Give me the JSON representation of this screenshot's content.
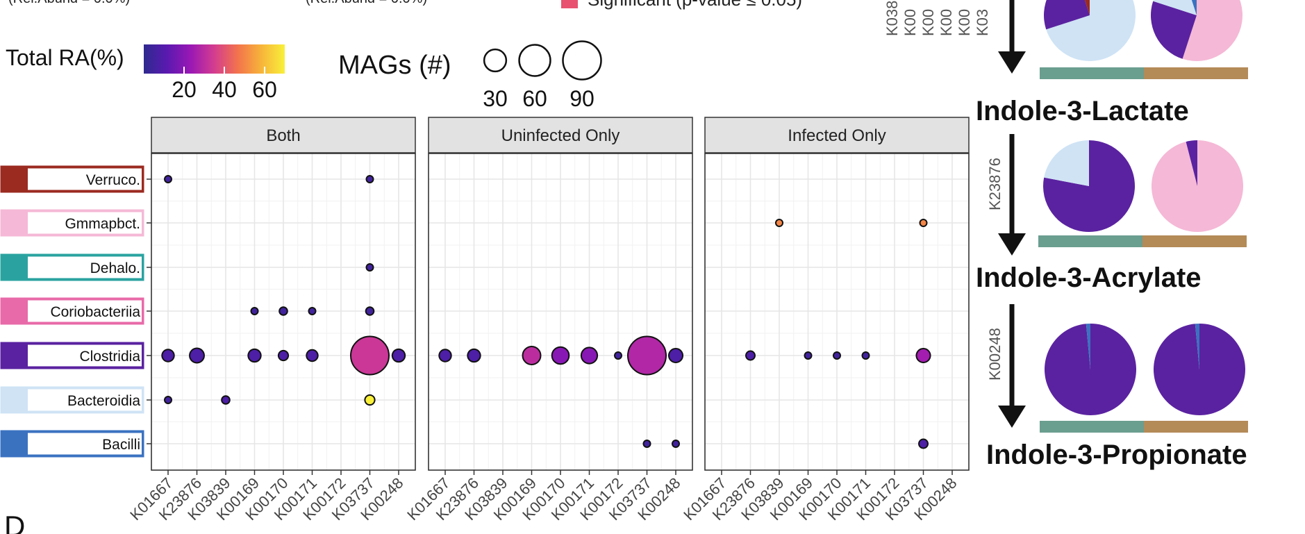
{
  "legend": {
    "partial_label_left": "(Rel.Abund = 0.0%)",
    "partial_label_right": "(Rel.Abund = 0.0%)",
    "significant_label": "Significant (p-value ≤ 0.05)",
    "significant_color": "#e8516f",
    "total_ra_title": "Total RA(%)",
    "total_ra_ticks": [
      "20",
      "40",
      "60"
    ],
    "mags_title": "MAGs (#)",
    "mags_values": [
      "30",
      "60",
      "90"
    ]
  },
  "panel_letter": "D",
  "chart_data": {
    "type": "scatter",
    "subtype": "faceted bubble plot",
    "facets": [
      "Both",
      "Uninfected Only",
      "Infected Only"
    ],
    "x_categories": [
      "K01667",
      "K23876",
      "K03839",
      "K00169",
      "K00170",
      "K00171",
      "K00172",
      "K03737",
      "K00248"
    ],
    "y_categories": [
      "Verruco.",
      "Gmmapbct.",
      "Dehalo.",
      "Coriobacteriia",
      "Clostridia",
      "Bacteroidia",
      "Bacilli"
    ],
    "y_colors": [
      "#9b2a20",
      "#f5b8d6",
      "#2aa3a0",
      "#e86aa8",
      "#5a22a0",
      "#cfe3f5",
      "#3a72c0"
    ],
    "color_scale": {
      "label": "Total RA(%)",
      "min": 0,
      "max": 70,
      "colors": [
        "#2e2a8f",
        "#5b19b0",
        "#9a18b5",
        "#d43d8f",
        "#f3734c",
        "#f7b43a",
        "#f8f03a"
      ]
    },
    "size_scale": {
      "label": "MAGs (#)",
      "reference": [
        30,
        60,
        90
      ]
    },
    "points": [
      {
        "facet": "Both",
        "x": "K01667",
        "y": "Verruco.",
        "mags": 1,
        "ra": 5
      },
      {
        "facet": "Both",
        "x": "K03737",
        "y": "Verruco.",
        "mags": 1,
        "ra": 5
      },
      {
        "facet": "Both",
        "x": "K03737",
        "y": "Dehalo.",
        "mags": 1,
        "ra": 5
      },
      {
        "facet": "Both",
        "x": "K00169",
        "y": "Coriobacteriia",
        "mags": 1,
        "ra": 5
      },
      {
        "facet": "Both",
        "x": "K00170",
        "y": "Coriobacteriia",
        "mags": 4,
        "ra": 5
      },
      {
        "facet": "Both",
        "x": "K00171",
        "y": "Coriobacteriia",
        "mags": 1,
        "ra": 5
      },
      {
        "facet": "Both",
        "x": "K03737",
        "y": "Coriobacteriia",
        "mags": 4,
        "ra": 5
      },
      {
        "facet": "Both",
        "x": "K01667",
        "y": "Clostridia",
        "mags": 9,
        "ra": 8
      },
      {
        "facet": "Both",
        "x": "K23876",
        "y": "Clostridia",
        "mags": 13,
        "ra": 8
      },
      {
        "facet": "Both",
        "x": "K00169",
        "y": "Clostridia",
        "mags": 10,
        "ra": 8
      },
      {
        "facet": "Both",
        "x": "K00170",
        "y": "Clostridia",
        "mags": 6,
        "ra": 8
      },
      {
        "facet": "Both",
        "x": "K00171",
        "y": "Clostridia",
        "mags": 8,
        "ra": 8
      },
      {
        "facet": "Both",
        "x": "K03737",
        "y": "Clostridia",
        "mags": 90,
        "ra": 33
      },
      {
        "facet": "Both",
        "x": "K00248",
        "y": "Clostridia",
        "mags": 10,
        "ra": 8
      },
      {
        "facet": "Both",
        "x": "K01667",
        "y": "Bacteroidia",
        "mags": 1,
        "ra": 5
      },
      {
        "facet": "Both",
        "x": "K03839",
        "y": "Bacteroidia",
        "mags": 4,
        "ra": 8
      },
      {
        "facet": "Both",
        "x": "K03737",
        "y": "Bacteroidia",
        "mags": 6,
        "ra": 70
      },
      {
        "facet": "Uninfected Only",
        "x": "K01667",
        "y": "Clostridia",
        "mags": 9,
        "ra": 8
      },
      {
        "facet": "Uninfected Only",
        "x": "K23876",
        "y": "Clostridia",
        "mags": 10,
        "ra": 8
      },
      {
        "facet": "Uninfected Only",
        "x": "K00169",
        "y": "Clostridia",
        "mags": 20,
        "ra": 30
      },
      {
        "facet": "Uninfected Only",
        "x": "K00170",
        "y": "Clostridia",
        "mags": 18,
        "ra": 20
      },
      {
        "facet": "Uninfected Only",
        "x": "K00171",
        "y": "Clostridia",
        "mags": 16,
        "ra": 20
      },
      {
        "facet": "Uninfected Only",
        "x": "K00172",
        "y": "Clostridia",
        "mags": 1,
        "ra": 5
      },
      {
        "facet": "Uninfected Only",
        "x": "K03737",
        "y": "Clostridia",
        "mags": 90,
        "ra": 28
      },
      {
        "facet": "Uninfected Only",
        "x": "K00248",
        "y": "Clostridia",
        "mags": 12,
        "ra": 8
      },
      {
        "facet": "Uninfected Only",
        "x": "K03737",
        "y": "Bacilli",
        "mags": 3,
        "ra": 5
      },
      {
        "facet": "Uninfected Only",
        "x": "K00248",
        "y": "Bacilli",
        "mags": 1,
        "ra": 5
      },
      {
        "facet": "Infected Only",
        "x": "K03839",
        "y": "Gmmapbct.",
        "mags": 1,
        "ra": 50
      },
      {
        "facet": "Infected Only",
        "x": "K03737",
        "y": "Gmmapbct.",
        "mags": 1,
        "ra": 50
      },
      {
        "facet": "Infected Only",
        "x": "K23876",
        "y": "Clostridia",
        "mags": 5,
        "ra": 8
      },
      {
        "facet": "Infected Only",
        "x": "K00169",
        "y": "Clostridia",
        "mags": 1,
        "ra": 5
      },
      {
        "facet": "Infected Only",
        "x": "K00170",
        "y": "Clostridia",
        "mags": 1,
        "ra": 5
      },
      {
        "facet": "Infected Only",
        "x": "K00171",
        "y": "Clostridia",
        "mags": 1,
        "ra": 5
      },
      {
        "facet": "Infected Only",
        "x": "K03737",
        "y": "Clostridia",
        "mags": 12,
        "ra": 25
      },
      {
        "facet": "Infected Only",
        "x": "K03737",
        "y": "Bacilli",
        "mags": 5,
        "ra": 8
      }
    ]
  },
  "pathway": {
    "partial_codes": [
      "K038",
      "K00",
      "K00",
      "K00",
      "K00",
      "K03"
    ],
    "steps": [
      {
        "product": "Indole-3-Lactate",
        "enzyme": "K23876"
      },
      {
        "product": "Indole-3-Acrylate",
        "enzyme": "K00248"
      },
      {
        "product": "Indole-3-Propionate",
        "enzyme": ""
      }
    ],
    "group_colors": {
      "uninfected": "#6a9e8f",
      "infected": "#b48a57"
    },
    "pies": [
      {
        "row": 0,
        "group": "uninfected",
        "slices": [
          {
            "value": 0.7,
            "color": "#cfe3f5"
          },
          {
            "value": 0.25,
            "color": "#5a22a0"
          },
          {
            "value": 0.05,
            "color": "#9b2a20"
          }
        ]
      },
      {
        "row": 0,
        "group": "infected",
        "slices": [
          {
            "value": 0.55,
            "color": "#f5b8d6"
          },
          {
            "value": 0.25,
            "color": "#5a22a0"
          },
          {
            "value": 0.15,
            "color": "#cfe3f5"
          },
          {
            "value": 0.05,
            "color": "#3a72c0"
          }
        ]
      },
      {
        "row": 1,
        "group": "uninfected",
        "slices": [
          {
            "value": 0.78,
            "color": "#5a22a0"
          },
          {
            "value": 0.22,
            "color": "#cfe3f5"
          }
        ]
      },
      {
        "row": 1,
        "group": "infected",
        "slices": [
          {
            "value": 0.96,
            "color": "#f5b8d6"
          },
          {
            "value": 0.04,
            "color": "#5a22a0"
          }
        ]
      },
      {
        "row": 2,
        "group": "uninfected",
        "slices": [
          {
            "value": 0.985,
            "color": "#5a22a0"
          },
          {
            "value": 0.015,
            "color": "#3a72c0"
          }
        ]
      },
      {
        "row": 2,
        "group": "infected",
        "slices": [
          {
            "value": 0.985,
            "color": "#5a22a0"
          },
          {
            "value": 0.015,
            "color": "#3a72c0"
          }
        ]
      }
    ]
  }
}
